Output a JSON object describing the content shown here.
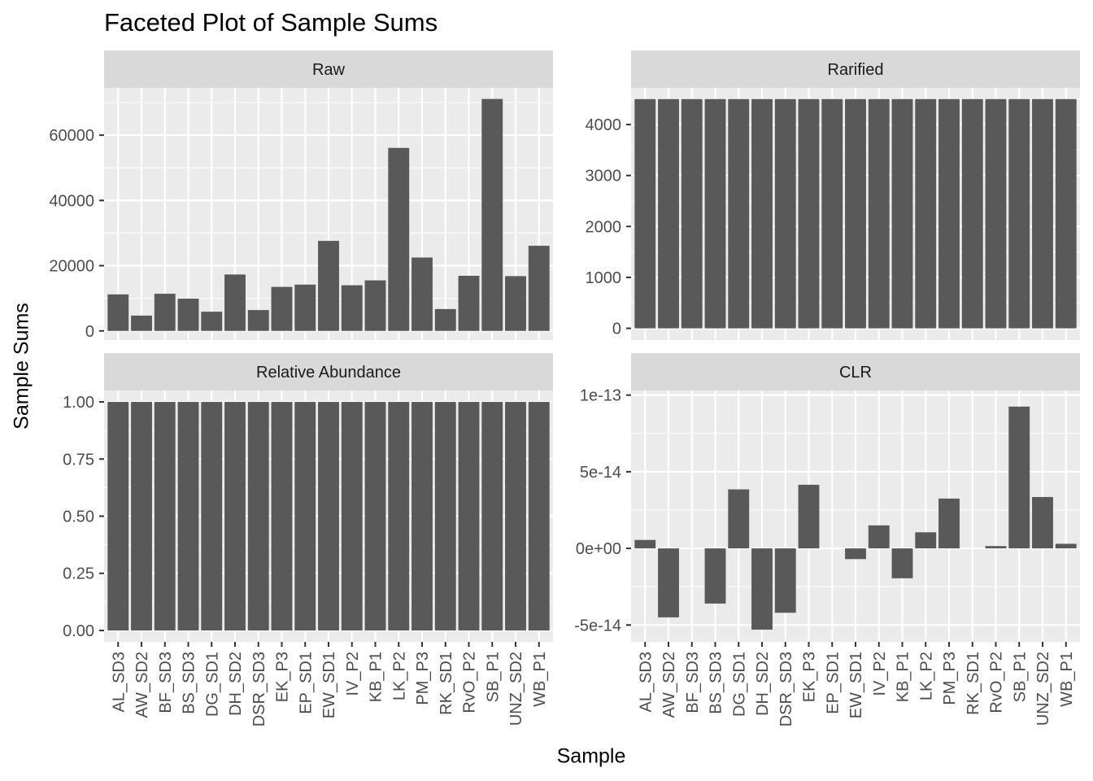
{
  "title": "Faceted Plot of Sample Sums",
  "xlabel": "Sample",
  "ylabel": "Sample Sums",
  "chart_data": {
    "type": "bar",
    "facet_layout": "2x2",
    "x_tick_rotation": "vertical",
    "grid": true,
    "colors": {
      "bar": "#595959",
      "panel_bg": "#EBEBEB",
      "strip_bg": "#D9D9D9",
      "grid": "#FFFFFF",
      "text": "#4D4D4D"
    },
    "categories": [
      "AL_SD3",
      "AW_SD2",
      "BF_SD3",
      "BS_SD3",
      "DG_SD1",
      "DH_SD2",
      "DSR_SD3",
      "EK_P3",
      "EP_SD1",
      "EW_SD1",
      "IV_P2",
      "KB_P1",
      "LK_P2",
      "PM_P3",
      "RK_SD1",
      "RvO_P2",
      "SB_P1",
      "UNZ_SD2",
      "WB_P1"
    ],
    "facets": [
      {
        "name": "Raw",
        "ylim": [
          -2800,
          74500
        ],
        "yticks": [
          0,
          20000,
          40000,
          60000
        ],
        "ytick_labels": [
          "0",
          "20000",
          "40000",
          "60000"
        ],
        "values": [
          11200,
          4700,
          11400,
          9900,
          5900,
          17300,
          6400,
          13500,
          14200,
          27600,
          14000,
          15500,
          56100,
          22500,
          6700,
          16900,
          71100,
          16800,
          26100
        ]
      },
      {
        "name": "Rarified",
        "ylim": [
          -230,
          4720
        ],
        "yticks": [
          0,
          1000,
          2000,
          3000,
          4000
        ],
        "ytick_labels": [
          "0",
          "1000",
          "2000",
          "3000",
          "4000"
        ],
        "values": [
          4500,
          4500,
          4500,
          4500,
          4500,
          4500,
          4500,
          4500,
          4500,
          4500,
          4500,
          4500,
          4500,
          4500,
          4500,
          4500,
          4500,
          4500,
          4500
        ]
      },
      {
        "name": "Relative Abundance",
        "ylim": [
          -0.05,
          1.05
        ],
        "yticks": [
          0,
          0.25,
          0.5,
          0.75,
          1
        ],
        "ytick_labels": [
          "0.00",
          "0.25",
          "0.50",
          "0.75",
          "1.00"
        ],
        "values": [
          1,
          1,
          1,
          1,
          1,
          1,
          1,
          1,
          1,
          1,
          1,
          1,
          1,
          1,
          1,
          1,
          1,
          1,
          1
        ]
      },
      {
        "name": "CLR",
        "ylim": [
          -6.1e-14,
          1.03e-13
        ],
        "yticks": [
          -5e-14,
          0,
          5e-14,
          1e-13
        ],
        "ytick_labels": [
          "-5e-14",
          "0e+00",
          "5e-14",
          "1e-13"
        ],
        "values": [
          5.5e-15,
          -4.5e-14,
          0,
          -3.6e-14,
          3.85e-14,
          -5.3e-14,
          -4.2e-14,
          4.15e-14,
          0,
          -7e-15,
          1.5e-14,
          -1.95e-14,
          1.05e-14,
          3.25e-14,
          0,
          1.5e-15,
          9.25e-14,
          3.35e-14,
          3e-15
        ]
      }
    ]
  }
}
